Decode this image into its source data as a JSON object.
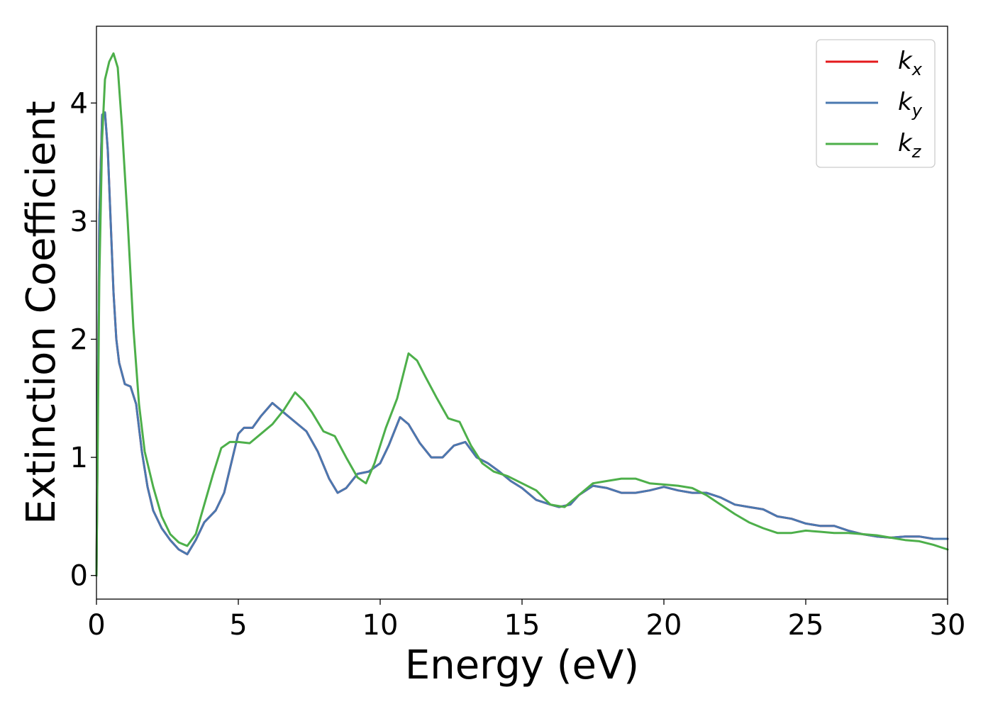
{
  "chart_data": {
    "type": "line",
    "xlabel": "Energy (eV)",
    "ylabel": "Extinction Coefficient",
    "xlim": [
      0,
      30
    ],
    "ylim": [
      -0.2,
      4.65
    ],
    "xticks": [
      0,
      5,
      10,
      15,
      20,
      25,
      30
    ],
    "yticks": [
      0,
      1,
      2,
      3,
      4
    ],
    "grid": false,
    "legend_position": "top-right",
    "series": [
      {
        "name": "k_x",
        "label_base": "k",
        "label_sub": "x",
        "color": "#e41a1c",
        "x": [
          0,
          0.1,
          0.2,
          0.3,
          0.4,
          0.5,
          0.6,
          0.7,
          0.8,
          1.0,
          1.2,
          1.4,
          1.6,
          1.8,
          2.0,
          2.3,
          2.6,
          2.9,
          3.2,
          3.5,
          3.8,
          4.2,
          4.5,
          4.8,
          5.0,
          5.2,
          5.5,
          5.8,
          6.2,
          6.6,
          7.0,
          7.4,
          7.8,
          8.2,
          8.5,
          8.8,
          9.2,
          9.6,
          10.0,
          10.3,
          10.7,
          11.0,
          11.4,
          11.8,
          12.2,
          12.6,
          13.0,
          13.4,
          13.8,
          14.2,
          14.6,
          15.0,
          15.5,
          16.0,
          16.3,
          16.7,
          17.0,
          17.5,
          18.0,
          18.5,
          19.0,
          19.5,
          20.0,
          20.5,
          21.0,
          21.5,
          22.0,
          22.5,
          23.0,
          23.5,
          24.0,
          24.5,
          25.0,
          25.5,
          26.0,
          26.5,
          27.0,
          27.5,
          28.0,
          28.5,
          29.0,
          29.5,
          30.0
        ],
        "values": [
          0.0,
          3.0,
          3.9,
          3.92,
          3.6,
          3.0,
          2.4,
          2.0,
          1.8,
          1.62,
          1.6,
          1.45,
          1.05,
          0.75,
          0.55,
          0.4,
          0.3,
          0.22,
          0.18,
          0.3,
          0.45,
          0.55,
          0.7,
          1.0,
          1.2,
          1.25,
          1.25,
          1.35,
          1.46,
          1.38,
          1.3,
          1.22,
          1.05,
          0.82,
          0.7,
          0.74,
          0.86,
          0.88,
          0.95,
          1.1,
          1.34,
          1.28,
          1.12,
          1.0,
          1.0,
          1.1,
          1.13,
          1.0,
          0.95,
          0.88,
          0.8,
          0.74,
          0.64,
          0.6,
          0.58,
          0.6,
          0.68,
          0.76,
          0.74,
          0.7,
          0.7,
          0.72,
          0.75,
          0.72,
          0.7,
          0.7,
          0.66,
          0.6,
          0.58,
          0.56,
          0.5,
          0.48,
          0.44,
          0.42,
          0.42,
          0.38,
          0.35,
          0.33,
          0.32,
          0.33,
          0.33,
          0.31,
          0.31
        ]
      },
      {
        "name": "k_y",
        "label_base": "k",
        "label_sub": "y",
        "color": "#4a78b0",
        "x": [
          0,
          0.1,
          0.2,
          0.3,
          0.4,
          0.5,
          0.6,
          0.7,
          0.8,
          1.0,
          1.2,
          1.4,
          1.6,
          1.8,
          2.0,
          2.3,
          2.6,
          2.9,
          3.2,
          3.5,
          3.8,
          4.2,
          4.5,
          4.8,
          5.0,
          5.2,
          5.5,
          5.8,
          6.2,
          6.6,
          7.0,
          7.4,
          7.8,
          8.2,
          8.5,
          8.8,
          9.2,
          9.6,
          10.0,
          10.3,
          10.7,
          11.0,
          11.4,
          11.8,
          12.2,
          12.6,
          13.0,
          13.4,
          13.8,
          14.2,
          14.6,
          15.0,
          15.5,
          16.0,
          16.3,
          16.7,
          17.0,
          17.5,
          18.0,
          18.5,
          19.0,
          19.5,
          20.0,
          20.5,
          21.0,
          21.5,
          22.0,
          22.5,
          23.0,
          23.5,
          24.0,
          24.5,
          25.0,
          25.5,
          26.0,
          26.5,
          27.0,
          27.5,
          28.0,
          28.5,
          29.0,
          29.5,
          30.0
        ],
        "values": [
          0.0,
          3.0,
          3.9,
          3.92,
          3.6,
          3.0,
          2.4,
          2.0,
          1.8,
          1.62,
          1.6,
          1.45,
          1.05,
          0.75,
          0.55,
          0.4,
          0.3,
          0.22,
          0.18,
          0.3,
          0.45,
          0.55,
          0.7,
          1.0,
          1.2,
          1.25,
          1.25,
          1.35,
          1.46,
          1.38,
          1.3,
          1.22,
          1.05,
          0.82,
          0.7,
          0.74,
          0.86,
          0.88,
          0.95,
          1.1,
          1.34,
          1.28,
          1.12,
          1.0,
          1.0,
          1.1,
          1.13,
          1.0,
          0.95,
          0.88,
          0.8,
          0.74,
          0.64,
          0.6,
          0.58,
          0.6,
          0.68,
          0.76,
          0.74,
          0.7,
          0.7,
          0.72,
          0.75,
          0.72,
          0.7,
          0.7,
          0.66,
          0.6,
          0.58,
          0.56,
          0.5,
          0.48,
          0.44,
          0.42,
          0.42,
          0.38,
          0.35,
          0.33,
          0.32,
          0.33,
          0.33,
          0.31,
          0.31
        ]
      },
      {
        "name": "k_z",
        "label_base": "k",
        "label_sub": "z",
        "color": "#4daf4a",
        "x": [
          0,
          0.1,
          0.2,
          0.3,
          0.45,
          0.6,
          0.75,
          0.9,
          1.1,
          1.3,
          1.5,
          1.7,
          2.0,
          2.3,
          2.6,
          2.9,
          3.2,
          3.5,
          3.8,
          4.1,
          4.4,
          4.7,
          5.0,
          5.4,
          5.8,
          6.2,
          6.6,
          7.0,
          7.3,
          7.6,
          8.0,
          8.4,
          8.8,
          9.2,
          9.5,
          9.8,
          10.2,
          10.6,
          11.0,
          11.3,
          11.6,
          12.0,
          12.4,
          12.8,
          13.2,
          13.6,
          14.0,
          14.5,
          15.0,
          15.5,
          16.0,
          16.5,
          17.0,
          17.5,
          18.0,
          18.5,
          19.0,
          19.5,
          20.0,
          20.5,
          21.0,
          21.5,
          22.0,
          22.5,
          23.0,
          23.5,
          24.0,
          24.5,
          25.0,
          25.5,
          26.0,
          26.5,
          27.0,
          27.5,
          28.0,
          28.5,
          29.0,
          29.5,
          30.0
        ],
        "values": [
          0.0,
          2.5,
          3.7,
          4.2,
          4.35,
          4.42,
          4.3,
          3.8,
          3.0,
          2.1,
          1.45,
          1.05,
          0.75,
          0.5,
          0.35,
          0.28,
          0.25,
          0.35,
          0.6,
          0.85,
          1.08,
          1.13,
          1.13,
          1.12,
          1.2,
          1.28,
          1.4,
          1.55,
          1.48,
          1.38,
          1.22,
          1.18,
          1.0,
          0.83,
          0.78,
          0.95,
          1.25,
          1.5,
          1.88,
          1.82,
          1.68,
          1.5,
          1.33,
          1.3,
          1.1,
          0.95,
          0.88,
          0.84,
          0.78,
          0.72,
          0.6,
          0.58,
          0.68,
          0.78,
          0.8,
          0.82,
          0.82,
          0.78,
          0.77,
          0.76,
          0.74,
          0.68,
          0.6,
          0.52,
          0.45,
          0.4,
          0.36,
          0.36,
          0.38,
          0.37,
          0.36,
          0.36,
          0.35,
          0.34,
          0.32,
          0.3,
          0.29,
          0.26,
          0.22
        ]
      }
    ]
  }
}
